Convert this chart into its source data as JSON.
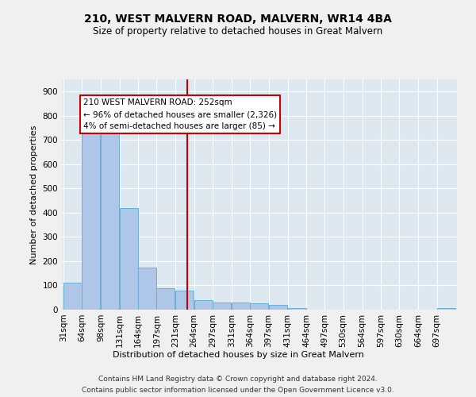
{
  "title": "210, WEST MALVERN ROAD, MALVERN, WR14 4BA",
  "subtitle": "Size of property relative to detached houses in Great Malvern",
  "xlabel": "Distribution of detached houses by size in Great Malvern",
  "ylabel": "Number of detached properties",
  "footer_line1": "Contains HM Land Registry data © Crown copyright and database right 2024.",
  "footer_line2": "Contains public sector information licensed under the Open Government Licence v3.0.",
  "annotation_line1": "210 WEST MALVERN ROAD: 252sqm",
  "annotation_line2": "← 96% of detached houses are smaller (2,326)",
  "annotation_line3": "4% of semi-detached houses are larger (85) →",
  "property_size": 252,
  "bar_color": "#aec6e8",
  "bar_edge_color": "#6aafd6",
  "vline_color": "#cc0000",
  "plot_bg_color": "#dde8f0",
  "fig_bg_color": "#f0f0f0",
  "grid_color": "#ffffff",
  "categories": [
    31,
    64,
    98,
    131,
    164,
    197,
    231,
    264,
    297,
    331,
    364,
    397,
    431,
    464,
    497,
    530,
    564,
    597,
    630,
    664,
    697
  ],
  "values": [
    110,
    735,
    735,
    420,
    175,
    90,
    80,
    40,
    30,
    30,
    25,
    20,
    5,
    0,
    0,
    0,
    0,
    0,
    0,
    0,
    5
  ],
  "bin_width": 33,
  "ylim": [
    0,
    950
  ],
  "yticks": [
    0,
    100,
    200,
    300,
    400,
    500,
    600,
    700,
    800,
    900
  ],
  "title_fontsize": 10,
  "subtitle_fontsize": 8.5,
  "axis_label_fontsize": 8,
  "tick_fontsize": 7.5,
  "annotation_fontsize": 7.5,
  "footer_fontsize": 6.5
}
